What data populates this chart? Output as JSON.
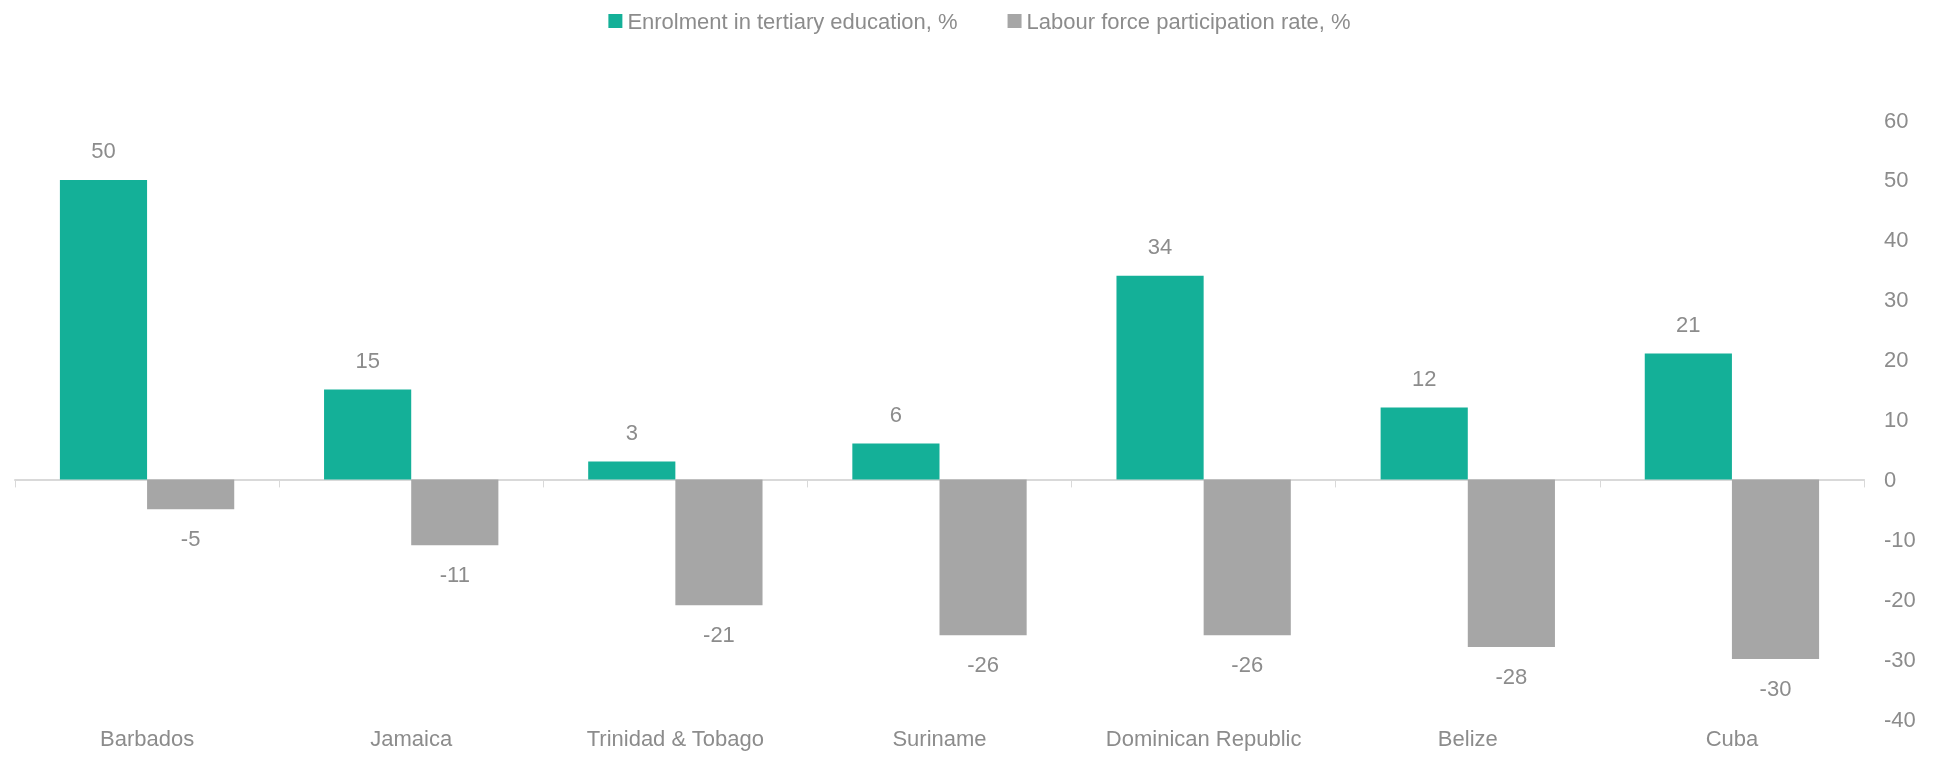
{
  "chart_data": {
    "type": "bar",
    "categories": [
      "Barbados",
      "Jamaica",
      "Trinidad & Tobago",
      "Suriname",
      "Dominican Republic",
      "Belize",
      "Cuba"
    ],
    "series": [
      {
        "name": "Enrolment in tertiary education, %",
        "color": "#14b098",
        "values": [
          50,
          15,
          3,
          6,
          34,
          12,
          21
        ]
      },
      {
        "name": "Labour force participation rate, %",
        "color": "#a6a6a6",
        "values": [
          -5,
          -11,
          -21,
          -26,
          -26,
          -28,
          -30
        ]
      }
    ],
    "ylim": [
      -40,
      60
    ],
    "yticks": [
      -40,
      -30,
      -20,
      -10,
      0,
      10,
      20,
      30,
      40,
      50,
      60
    ],
    "data_labels": true,
    "legend": "top"
  }
}
